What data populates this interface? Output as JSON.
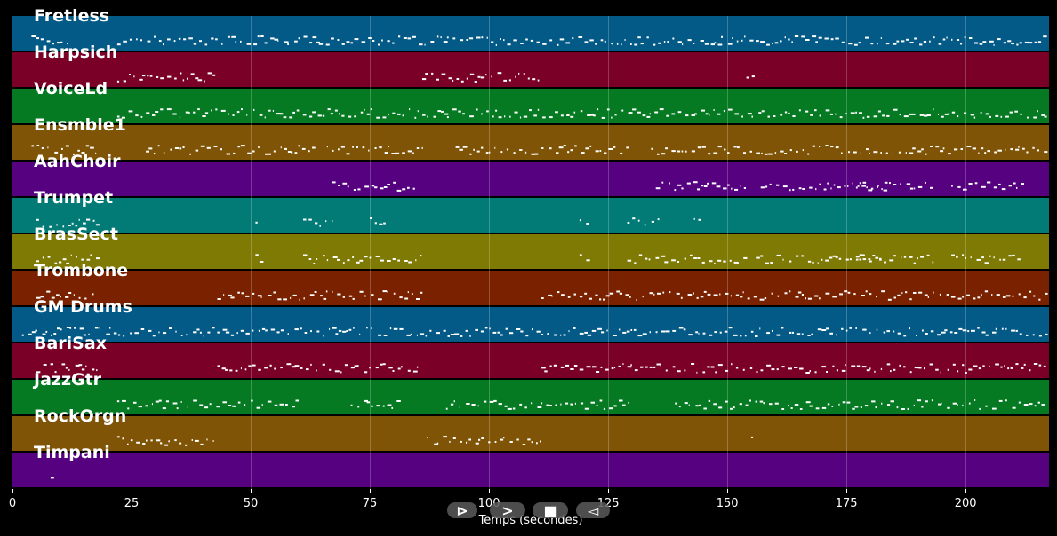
{
  "tracks": [
    {
      "name": "Fretless",
      "color": "#035a87"
    },
    {
      "name": "Harpsich",
      "color": "#7a0028"
    },
    {
      "name": "VoiceLd",
      "color": "#057a22"
    },
    {
      "name": "Ensmble1",
      "color": "#7f5406"
    },
    {
      "name": "AahChoir",
      "color": "#550180"
    },
    {
      "name": "Trumpet",
      "color": "#027b77"
    },
    {
      "name": "BrasSect",
      "color": "#7e7a04"
    },
    {
      "name": "Trombone",
      "color": "#7a2200"
    },
    {
      "name": "GM Drums",
      "color": "#035a87"
    },
    {
      "name": "BariSax",
      "color": "#7a0028"
    },
    {
      "name": "JazzGtr",
      "color": "#057a22"
    },
    {
      "name": "RockOrgn",
      "color": "#7f5406"
    },
    {
      "name": "Timpani",
      "color": "#550180"
    }
  ],
  "axis": {
    "label": "Temps (secondes)",
    "ticks": [
      "0",
      "25",
      "50",
      "75",
      "100",
      "125",
      "150",
      "175",
      "200"
    ],
    "max_seconds": 217.5
  },
  "controls": {
    "play_symbol": "⊳",
    "forward_symbol": ">",
    "stop_symbol": "■",
    "back_symbol": "◅"
  }
}
